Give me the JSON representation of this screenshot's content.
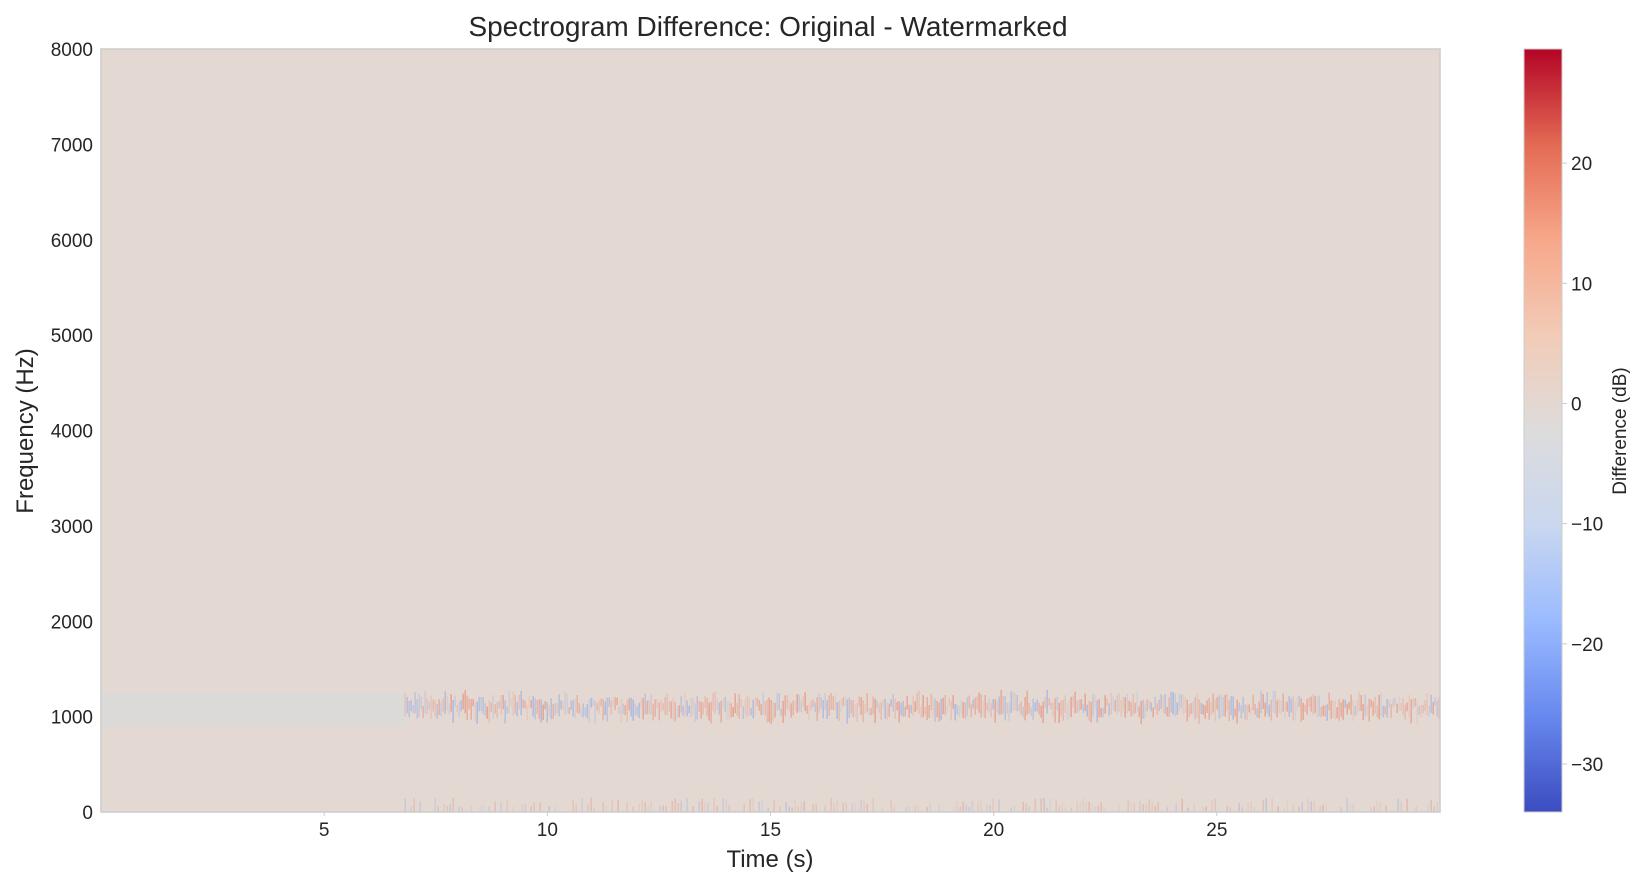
{
  "chart_data": {
    "type": "heatmap",
    "title": "Spectrogram Difference: Original - Watermarked",
    "xlabel": "Time (s)",
    "ylabel": "Frequency (Hz)",
    "xlim": [
      0,
      30
    ],
    "ylim": [
      0,
      8000
    ],
    "xticks": [
      5,
      10,
      15,
      20,
      25
    ],
    "xtick_labels": [
      "5",
      "10",
      "15",
      "20",
      "25"
    ],
    "yticks": [
      0,
      1000,
      2000,
      3000,
      4000,
      5000,
      6000,
      7000,
      8000
    ],
    "ytick_labels": [
      "0",
      "1000",
      "2000",
      "3000",
      "4000",
      "5000",
      "6000",
      "7000",
      "8000"
    ],
    "grid": false,
    "colormap": "coolwarm",
    "colorbar": {
      "label": "Difference (dB)",
      "vmin": -34,
      "vmax": 29.5,
      "ticks": [
        20,
        10,
        0,
        -10,
        -20,
        -30
      ],
      "tick_labels": [
        "20",
        "10",
        "0",
        "−10",
        "−20",
        "−30"
      ]
    },
    "colors": {
      "background": "#e3d9d2",
      "low_band": "#dcdad8",
      "positive": "#e8765e",
      "negative": "#7f9ee6",
      "cmap_stops": [
        "#3b4cc0",
        "#6788ee",
        "#9abbff",
        "#c9d7f0",
        "#dddcdc",
        "#f2cbb7",
        "#f7a789",
        "#e36a53",
        "#b40426"
      ]
    },
    "regions": [
      {
        "label": "no difference",
        "t_start": 0,
        "t_end": 30,
        "f_low": 0,
        "f_high": 8000,
        "diff_db": 1
      },
      {
        "label": "unmarked segment (1000 Hz band)",
        "t_start": 0,
        "t_end": 6.8,
        "f_low": 900,
        "f_high": 1250,
        "diff_db": 0
      },
      {
        "label": "watermark band",
        "t_start": 6.8,
        "t_end": 30,
        "f_low": 900,
        "f_high": 1300,
        "diff_db_range": [
          -15,
          20
        ]
      },
      {
        "label": "low-frequency residue",
        "t_start": 6.8,
        "t_end": 30,
        "f_low": 0,
        "f_high": 150,
        "diff_db_range": [
          -8,
          10
        ]
      }
    ]
  }
}
